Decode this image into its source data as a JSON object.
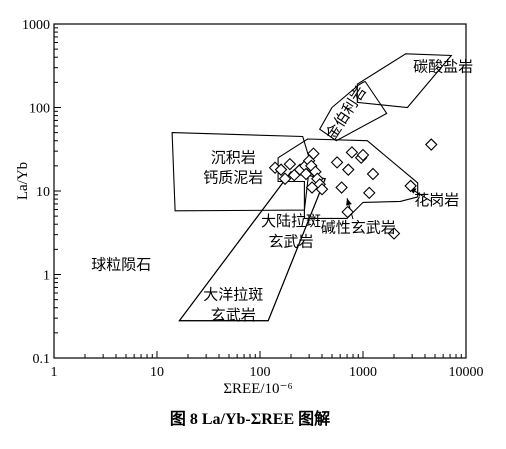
{
  "chart_data": {
    "type": "scatter",
    "title": "",
    "caption": "图 8   La/Yb-ΣREE 图解",
    "xlabel": "ΣREE/10⁻⁶",
    "ylabel": "La/Yb",
    "xscale": "log",
    "yscale": "log",
    "xlim": [
      1,
      10000
    ],
    "ylim": [
      0.1,
      1000
    ],
    "xticks": [
      1,
      10,
      100,
      1000,
      10000
    ],
    "xtick_labels": [
      "1",
      "10",
      "100",
      "1000",
      "10000"
    ],
    "yticks": [
      0.1,
      1,
      10,
      100,
      1000
    ],
    "ytick_labels": [
      "0.1",
      "1",
      "10",
      "100",
      "1000"
    ],
    "grid": false,
    "marker": "diamond",
    "points": [
      {
        "x": 140,
        "y": 19
      },
      {
        "x": 160,
        "y": 18
      },
      {
        "x": 175,
        "y": 14
      },
      {
        "x": 195,
        "y": 21
      },
      {
        "x": 215,
        "y": 15.5
      },
      {
        "x": 245,
        "y": 18
      },
      {
        "x": 275,
        "y": 20
      },
      {
        "x": 280,
        "y": 16
      },
      {
        "x": 300,
        "y": 23
      },
      {
        "x": 315,
        "y": 20
      },
      {
        "x": 330,
        "y": 28
      },
      {
        "x": 345,
        "y": 17
      },
      {
        "x": 360,
        "y": 14
      },
      {
        "x": 380,
        "y": 12
      },
      {
        "x": 400,
        "y": 10.5
      },
      {
        "x": 320,
        "y": 11
      },
      {
        "x": 560,
        "y": 22
      },
      {
        "x": 620,
        "y": 11
      },
      {
        "x": 720,
        "y": 18
      },
      {
        "x": 780,
        "y": 29
      },
      {
        "x": 960,
        "y": 25
      },
      {
        "x": 1000,
        "y": 27
      },
      {
        "x": 1150,
        "y": 9.5
      },
      {
        "x": 1250,
        "y": 16
      },
      {
        "x": 710,
        "y": 5.6
      },
      {
        "x": 2000,
        "y": 3.1
      },
      {
        "x": 2900,
        "y": 11.5
      },
      {
        "x": 4600,
        "y": 36
      }
    ],
    "fields": [
      {
        "name": "碳酸盐岩",
        "label_lines": [
          "碳酸盐岩"
        ],
        "polygon": [
          [
            880,
            190
          ],
          [
            2600,
            440
          ],
          [
            7200,
            420
          ],
          [
            2700,
            100
          ],
          [
            880,
            115
          ]
        ],
        "label_at": [
          6000,
          270
        ]
      },
      {
        "name": "金伯利岩",
        "label_lines": [
          "金伯利岩"
        ],
        "polygon": [
          [
            500,
            100
          ],
          [
            900,
            185
          ],
          [
            1000,
            200
          ],
          [
            1050,
            205
          ],
          [
            1700,
            85
          ],
          [
            550,
            40
          ],
          [
            380,
            55
          ]
        ],
        "label_at": [
          750,
          80
        ],
        "label_rotation": -57
      },
      {
        "name": "沉积岩 钙质泥岩",
        "label_lines": [
          "沉积岩",
          "钙质泥岩"
        ],
        "polygon": [
          [
            14,
            50
          ],
          [
            260,
            45
          ],
          [
            300,
            25
          ],
          [
            300,
            18
          ],
          [
            270,
            5.9
          ],
          [
            15,
            5.8
          ]
        ],
        "label_at": [
          55,
          22
        ]
      },
      {
        "name": "碱性玄武岩",
        "label_lines": [
          "碱性玄武岩"
        ],
        "polygon": [
          [
            150,
            25
          ],
          [
            290,
            42
          ],
          [
            1100,
            40
          ],
          [
            3400,
            12.5
          ],
          [
            3400,
            8.5
          ],
          [
            2300,
            7.5
          ],
          [
            1000,
            7.3
          ],
          [
            700,
            4.7
          ],
          [
            270,
            4.7
          ],
          [
            270,
            13
          ],
          [
            150,
            13
          ]
        ],
        "label_at": [
          900,
          3.2
        ]
      },
      {
        "name": "大陆拉斑 玄武岩",
        "label_lines": [
          "大陆拉斑",
          "玄武岩"
        ],
        "polygon": [
          [
            16.5,
            0.28
          ],
          [
            120,
            0.28
          ],
          [
            430,
            14
          ],
          [
            200,
            17
          ]
        ],
        "label_at": [
          200,
          3.8
        ]
      },
      {
        "name": "大洋拉斑 玄武岩",
        "label_lines": [
          "大洋拉斑",
          "玄武岩"
        ],
        "polygon": [
          [
            16.5,
            0.28
          ],
          [
            120,
            0.28
          ],
          [
            430,
            14
          ],
          [
            200,
            17
          ]
        ],
        "label_at": [
          55,
          0.5
        ]
      },
      {
        "name": "花岗岩",
        "label_lines": [
          "花岗岩"
        ],
        "polygon": [],
        "label_at": [
          5200,
          6.8
        ]
      },
      {
        "name": "球粒陨石",
        "label_lines": [
          "球粒陨石"
        ],
        "polygon": [],
        "label_at": [
          4.5,
          1.15
        ]
      }
    ],
    "annotations": [
      {
        "label": "碱性玄武岩",
        "from": [
          800,
          4.6
        ],
        "to": [
          700,
          8.2
        ]
      },
      {
        "label": "花岗岩",
        "from": [
          4700,
          7.4
        ],
        "to": [
          2800,
          11
        ]
      }
    ]
  }
}
